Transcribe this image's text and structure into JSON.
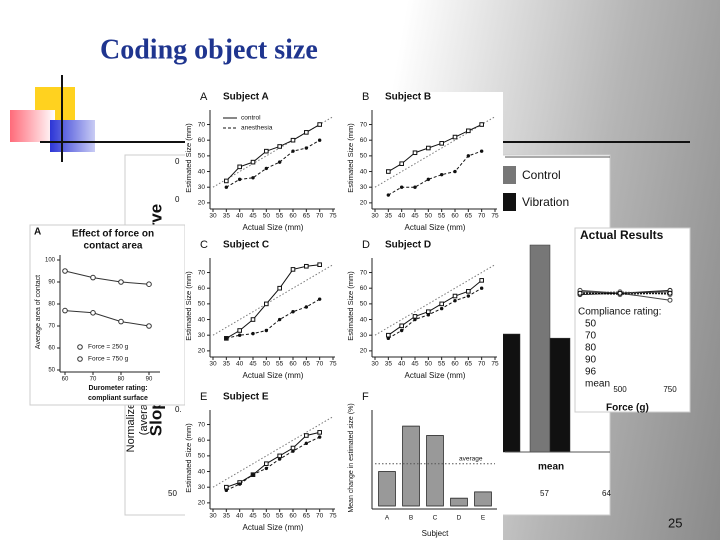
{
  "title": "Coding object size",
  "page_number": "25",
  "main_figure": {
    "x_label": "Actual Size (mm)",
    "y_label": "Estimated Size (mm)",
    "xlim": [
      30,
      75
    ],
    "ylim": [
      18,
      78
    ],
    "xticks": [
      30,
      35,
      40,
      45,
      50,
      55,
      60,
      65,
      70,
      75
    ],
    "yticks": [
      20,
      30,
      40,
      50,
      60,
      70
    ],
    "x": [
      35,
      40,
      45,
      50,
      55,
      60,
      65,
      70
    ],
    "panels": [
      {
        "letter": "A",
        "title": "Subject A",
        "series": [
          {
            "name": "control",
            "values": [
              34,
              43,
              46,
              53,
              56,
              60,
              65,
              70
            ]
          },
          {
            "name": "anesthesia",
            "values": [
              30,
              35,
              36,
              42,
              46,
              53,
              55,
              60
            ]
          }
        ]
      },
      {
        "letter": "B",
        "title": "Subject B",
        "series": [
          {
            "values": [
              40,
              45,
              52,
              55,
              58,
              62,
              66,
              70
            ]
          },
          {
            "values": [
              25,
              30,
              30,
              35,
              38,
              40,
              50,
              53
            ]
          }
        ]
      },
      {
        "letter": "C",
        "title": "Subject C",
        "series": [
          {
            "values": [
              28,
              33,
              40,
              50,
              60,
              72,
              74,
              75
            ]
          },
          {
            "values": [
              28,
              30,
              31,
              33,
              40,
              45,
              48,
              53
            ]
          }
        ]
      },
      {
        "letter": "D",
        "title": "Subject D",
        "series": [
          {
            "values": [
              30,
              36,
              42,
              45,
              50,
              55,
              58,
              65
            ]
          },
          {
            "values": [
              28,
              33,
              40,
              43,
              47,
              52,
              55,
              60
            ]
          }
        ]
      },
      {
        "letter": "E",
        "title": "Subject E",
        "series": [
          {
            "values": [
              30,
              33,
              38,
              45,
              50,
              55,
              63,
              65
            ]
          },
          {
            "values": [
              28,
              32,
              38,
              42,
              48,
              53,
              58,
              62
            ]
          }
        ]
      }
    ],
    "bar_panel": {
      "letter": "F",
      "y_label": "Mean change in estimated size (%)",
      "x_label": "Subject",
      "categories": [
        "A",
        "B",
        "C",
        "D",
        "E"
      ],
      "values": [
        22,
        51,
        45,
        5,
        9
      ],
      "color": "#999999",
      "ylim": [
        0,
        60
      ],
      "average": 27,
      "average_label": "average"
    }
  },
  "slope_figure": {
    "y_label": "Slope of psychometric curve",
    "y2_label_lines": [
      "Normalized magnitude estimate",
      "(average for all subjects)"
    ],
    "categories": [
      null,
      "mean"
    ],
    "ylim": [
      0,
      1
    ],
    "series": [
      {
        "name": "Control",
        "color": "#777777",
        "values": [
          null,
          1.0
        ]
      },
      {
        "name": "Vibration",
        "color": "#111111",
        "values": [
          0.57,
          0.55
        ]
      }
    ],
    "tick_fragments": [
      "0",
      "0",
      "0.",
      "50",
      "57",
      "64"
    ]
  },
  "force_figure": {
    "letter": "A",
    "title_lines": [
      "Effect of force on",
      "contact area"
    ],
    "y_label": "Average area of contact",
    "x_label_lines": [
      "Durometer rating:",
      "compliant surface"
    ],
    "x": [
      60,
      70,
      80,
      90
    ],
    "xticks": [
      60,
      70,
      80,
      90
    ],
    "ylim": [
      50,
      100
    ],
    "yticks": [
      50,
      60,
      70,
      80,
      90,
      100
    ],
    "series": [
      {
        "name": "Force = 250 g",
        "values": [
          95,
          92,
          90,
          89
        ]
      },
      {
        "name": "Force = 750 g",
        "values": [
          77,
          76,
          72,
          70
        ]
      }
    ]
  },
  "results_figure": {
    "title": "Actual Results",
    "legend_title": "Compliance rating:",
    "x_label": "Force (g)",
    "x": [
      300,
      500,
      750
    ],
    "xticks": [
      500,
      750
    ],
    "ylim": [
      0,
      100
    ],
    "series": [
      {
        "name": "50",
        "values": [
          63,
          62,
          63
        ]
      },
      {
        "name": "70",
        "values": [
          62,
          61,
          62
        ]
      },
      {
        "name": "80",
        "values": [
          61,
          62,
          64
        ]
      },
      {
        "name": "90",
        "values": [
          62,
          63,
          61
        ]
      },
      {
        "name": "96",
        "values": [
          64,
          62,
          57
        ]
      },
      {
        "name": "mean",
        "values": [
          62,
          62,
          62
        ]
      }
    ]
  }
}
